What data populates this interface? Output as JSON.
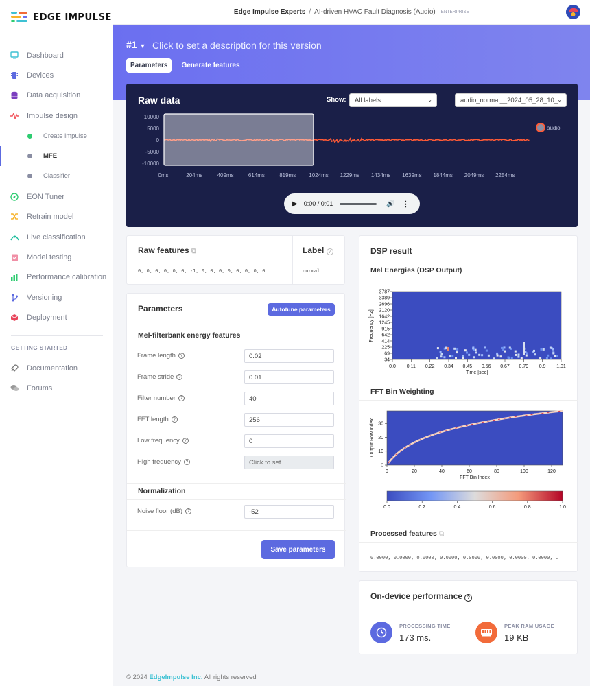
{
  "brand": {
    "name": "EDGE IMPULSE"
  },
  "topbar": {
    "project_owner": "Edge Impulse Experts",
    "separator": "/",
    "project_name": "AI-driven HVAC Fault Diagnosis (Audio)",
    "plan_badge": "ENTERPRISE"
  },
  "sidebar": {
    "items": [
      {
        "label": "Dashboard",
        "icon": "monitor-icon"
      },
      {
        "label": "Devices",
        "icon": "chip-icon"
      },
      {
        "label": "Data acquisition",
        "icon": "database-icon"
      },
      {
        "label": "Impulse design",
        "icon": "pulse-icon"
      },
      {
        "label": "Create impulse",
        "icon": "green-dot-icon"
      },
      {
        "label": "MFE",
        "icon": "gray-dot-icon"
      },
      {
        "label": "Classifier",
        "icon": "gray-dot-icon"
      },
      {
        "label": "EON Tuner",
        "icon": "compass-icon"
      },
      {
        "label": "Retrain model",
        "icon": "shuffle-icon"
      },
      {
        "label": "Live classification",
        "icon": "network-icon"
      },
      {
        "label": "Model testing",
        "icon": "clipboard-icon"
      },
      {
        "label": "Performance calibration",
        "icon": "chart-icon"
      },
      {
        "label": "Versioning",
        "icon": "branch-icon"
      },
      {
        "label": "Deployment",
        "icon": "cube-icon"
      }
    ],
    "section_label": "GETTING STARTED",
    "help": [
      {
        "label": "Documentation",
        "icon": "rocket-icon"
      },
      {
        "label": "Forums",
        "icon": "chat-icon"
      }
    ]
  },
  "version": {
    "number": "#1",
    "description_placeholder": "Click to set a description for this version"
  },
  "tabs": [
    {
      "label": "Parameters",
      "active": true
    },
    {
      "label": "Generate features",
      "active": false
    }
  ],
  "raw_data": {
    "title": "Raw data",
    "show_label": "Show:",
    "filter_value": "All labels",
    "sample_value": "audio_normal__2024_05_28_10_",
    "legend": "audio",
    "y_ticks": [
      "10000",
      "5000",
      "0",
      "-5000",
      "-10000"
    ],
    "x_ticks": [
      "0ms",
      "204ms",
      "409ms",
      "614ms",
      "819ms",
      "1024ms",
      "1229ms",
      "1434ms",
      "1639ms",
      "1844ms",
      "2049ms",
      "2254ms"
    ],
    "player_time": "0:00 / 0:01",
    "colors": {
      "panel": "#1a1f48",
      "signal": "#ff5a36"
    }
  },
  "raw_features": {
    "title": "Raw features",
    "values": "0, 0, 0, 0, 0, 0, -1, 0, 0, 0, 0, 0, 0, 0, 0…",
    "label_title": "Label",
    "label_value": "normal"
  },
  "parameters": {
    "title": "Parameters",
    "autotune_label": "Autotune parameters",
    "section": "Mel-filterbank energy features",
    "fields": [
      {
        "label": "Frame length",
        "value": "0.02"
      },
      {
        "label": "Frame stride",
        "value": "0.01"
      },
      {
        "label": "Filter number",
        "value": "40"
      },
      {
        "label": "FFT length",
        "value": "256"
      },
      {
        "label": "Low frequency",
        "value": "0"
      },
      {
        "label": "High frequency",
        "value": "Click to set"
      }
    ],
    "normalization_title": "Normalization",
    "noise_label": "Noise floor (dB)",
    "noise_value": "-52",
    "save_label": "Save parameters"
  },
  "dsp": {
    "title": "DSP result",
    "mel_title": "Mel Energies (DSP Output)",
    "fft_title": "FFT Bin Weighting",
    "processed_title": "Processed features",
    "processed_values": "0.0000, 0.0000, 0.0000, 0.0000, 0.0000, 0.0000, 0.0000, 0.0000, …"
  },
  "performance": {
    "title": "On-device performance",
    "time_label": "PROCESSING TIME",
    "time_value": "173 ms.",
    "ram_label": "PEAK RAM USAGE",
    "ram_value": "19 KB"
  },
  "footer": {
    "prefix": "© 2024",
    "company": "EdgeImpulse Inc.",
    "suffix": "All rights reserved"
  },
  "chart_data": [
    {
      "type": "heatmap",
      "title": "Mel Energies (DSP Output)",
      "xlabel": "Time [sec]",
      "ylabel": "Frequency [Hz]",
      "x_ticks": [
        "0.0",
        "0.11",
        "0.22",
        "0.34",
        "0.45",
        "0.56",
        "0.67",
        "0.79",
        "0.9",
        "1.01"
      ],
      "y_ticks": [
        "3787",
        "3389",
        "2696",
        "2120",
        "1642",
        "1245",
        "915",
        "642",
        "414",
        "225",
        "69",
        "34"
      ],
      "note_values": "mostly low energy; brief bright bins near 0.34 s and 0.79 s in low frequencies"
    },
    {
      "type": "heatmap",
      "title": "FFT Bin Weighting",
      "xlabel": "FFT Bin Index",
      "ylabel": "Output Row Index",
      "x_ticks": [
        "0",
        "20",
        "40",
        "60",
        "80",
        "100",
        "120"
      ],
      "y_ticks": [
        "0",
        "10",
        "20",
        "30"
      ],
      "colorbar_ticks": [
        "0.0",
        "0.2",
        "0.4",
        "0.6",
        "0.8",
        "1.0"
      ],
      "xlim": [
        0,
        128
      ],
      "ylim": [
        0,
        39
      ]
    }
  ]
}
